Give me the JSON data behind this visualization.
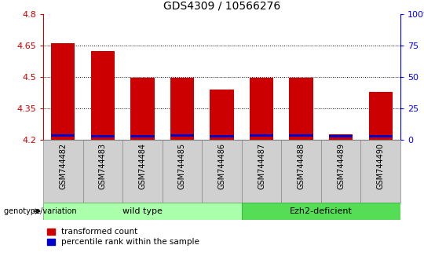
{
  "title": "GDS4309 / 10566276",
  "samples": [
    "GSM744482",
    "GSM744483",
    "GSM744484",
    "GSM744485",
    "GSM744486",
    "GSM744487",
    "GSM744488",
    "GSM744489",
    "GSM744490"
  ],
  "transformed_count": [
    4.66,
    4.625,
    4.495,
    4.495,
    4.44,
    4.495,
    4.495,
    4.225,
    4.43
  ],
  "percentile_rank_bottom": [
    4.215,
    4.21,
    4.21,
    4.215,
    4.21,
    4.215,
    4.215,
    4.21,
    4.21
  ],
  "y_min": 4.2,
  "y_max": 4.8,
  "y_ticks": [
    4.2,
    4.35,
    4.5,
    4.65,
    4.8
  ],
  "y2_ticks": [
    0,
    25,
    50,
    75,
    100
  ],
  "bar_color_red": "#CC0000",
  "bar_color_blue": "#0000CC",
  "wild_type_indices": [
    0,
    1,
    2,
    3,
    4
  ],
  "ezh2_indices": [
    5,
    6,
    7,
    8
  ],
  "wild_type_label": "wild type",
  "ezh2_label": "Ezh2-deficient",
  "genotype_label": "genotype/variation",
  "legend_red": "transformed count",
  "legend_blue": "percentile rank within the sample",
  "wild_type_color": "#AAFFAA",
  "ezh2_color": "#55DD55",
  "title_fontsize": 10,
  "tick_fontsize": 8,
  "bar_width": 0.6,
  "blue_bar_height": 0.012
}
